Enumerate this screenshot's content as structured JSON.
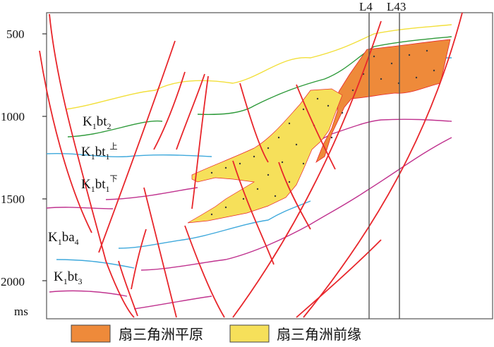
{
  "axis": {
    "unit": "ms",
    "ticks": [
      {
        "label": "500"
      },
      {
        "label": "1000"
      },
      {
        "label": "1500"
      },
      {
        "label": "2000"
      }
    ]
  },
  "wells": [
    {
      "label": "L4"
    },
    {
      "label": "L43"
    }
  ],
  "strata": [
    {
      "id": "k1bt2",
      "base": "K",
      "sub1": "1",
      "mid": "bt",
      "sub2": "2",
      "sup": ""
    },
    {
      "id": "k1bt1-upper",
      "base": "K",
      "sub1": "1",
      "mid": "bt",
      "sub2": "1",
      "sup": "上"
    },
    {
      "id": "k1bt1-lower",
      "base": "K",
      "sub1": "1",
      "mid": "bt",
      "sub2": "1",
      "sup": "下"
    },
    {
      "id": "k1ba4",
      "base": "K",
      "sub1": "1",
      "mid": "ba",
      "sub2": "4",
      "sup": ""
    },
    {
      "id": "k1bt3",
      "base": "K",
      "sub1": "1",
      "mid": "bt",
      "sub2": "3",
      "sup": ""
    }
  ],
  "legend": [
    {
      "label": "扇三角洲平原",
      "color": "#ee8a3a"
    },
    {
      "label": "扇三角洲前缘",
      "color": "#f6e05a"
    }
  ],
  "colors": {
    "fault": "#e8262b",
    "horizon_yellow": "#f2df3a",
    "horizon_green": "#2e9a3a",
    "horizon_blue": "#3fa9dc",
    "horizon_magenta": "#c0338f",
    "well_line": "#555555"
  }
}
